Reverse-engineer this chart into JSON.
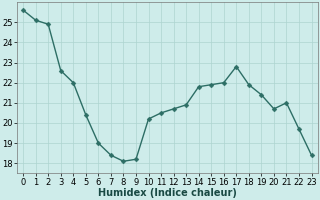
{
  "x": [
    0,
    1,
    2,
    3,
    4,
    5,
    6,
    7,
    8,
    9,
    10,
    11,
    12,
    13,
    14,
    15,
    16,
    17,
    18,
    19,
    20,
    21,
    22,
    23
  ],
  "y": [
    25.6,
    25.1,
    24.9,
    22.6,
    22.0,
    20.4,
    19.0,
    18.4,
    18.1,
    18.2,
    20.2,
    20.5,
    20.7,
    20.9,
    21.8,
    21.9,
    22.0,
    22.8,
    21.9,
    21.4,
    20.7,
    21.0,
    19.7,
    18.4
  ],
  "xlabel": "Humidex (Indice chaleur)",
  "xlim": [
    -0.5,
    23.5
  ],
  "ylim": [
    17.5,
    26.0
  ],
  "yticks": [
    18,
    19,
    20,
    21,
    22,
    23,
    24,
    25
  ],
  "xticks": [
    0,
    1,
    2,
    3,
    4,
    5,
    6,
    7,
    8,
    9,
    10,
    11,
    12,
    13,
    14,
    15,
    16,
    17,
    18,
    19,
    20,
    21,
    22,
    23
  ],
  "line_color": "#2d6e65",
  "marker": "D",
  "marker_size": 2.5,
  "bg_color": "#ceecea",
  "grid_color": "#aed4d0",
  "xlabel_fontsize": 7,
  "tick_fontsize": 6,
  "line_width": 1.0
}
